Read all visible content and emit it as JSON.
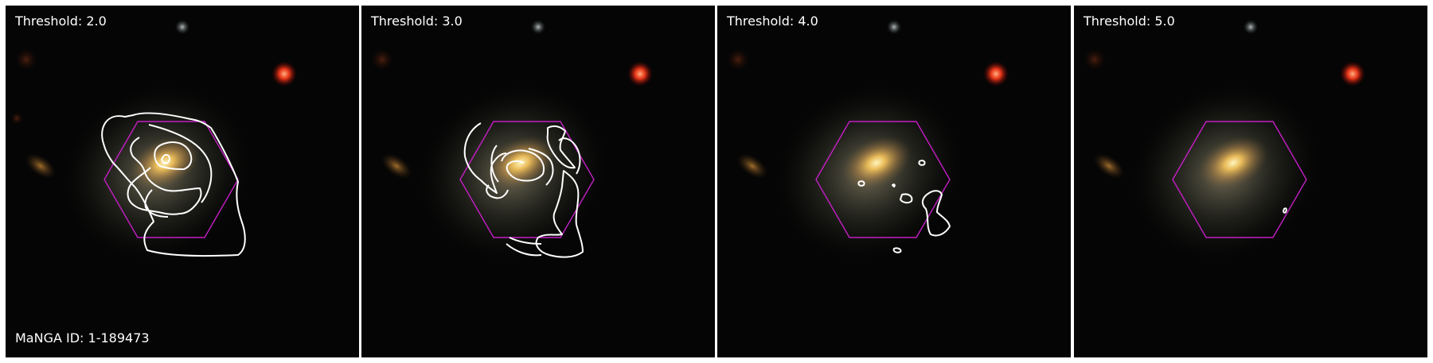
{
  "panels": [
    {
      "label": "Threshold: 2.0"
    },
    {
      "label": "Threshold: 3.0"
    },
    {
      "label": "Threshold: 4.0"
    },
    {
      "label": "Threshold: 5.0"
    }
  ],
  "galaxy_id": "MaNGA ID: 1-189473",
  "colors": {
    "background": "#030303",
    "ifu_footprint": "#c41ec4",
    "contour": "#ffffff",
    "galaxy_core": "#ffe27a",
    "red_star": "#ff3a1a"
  }
}
